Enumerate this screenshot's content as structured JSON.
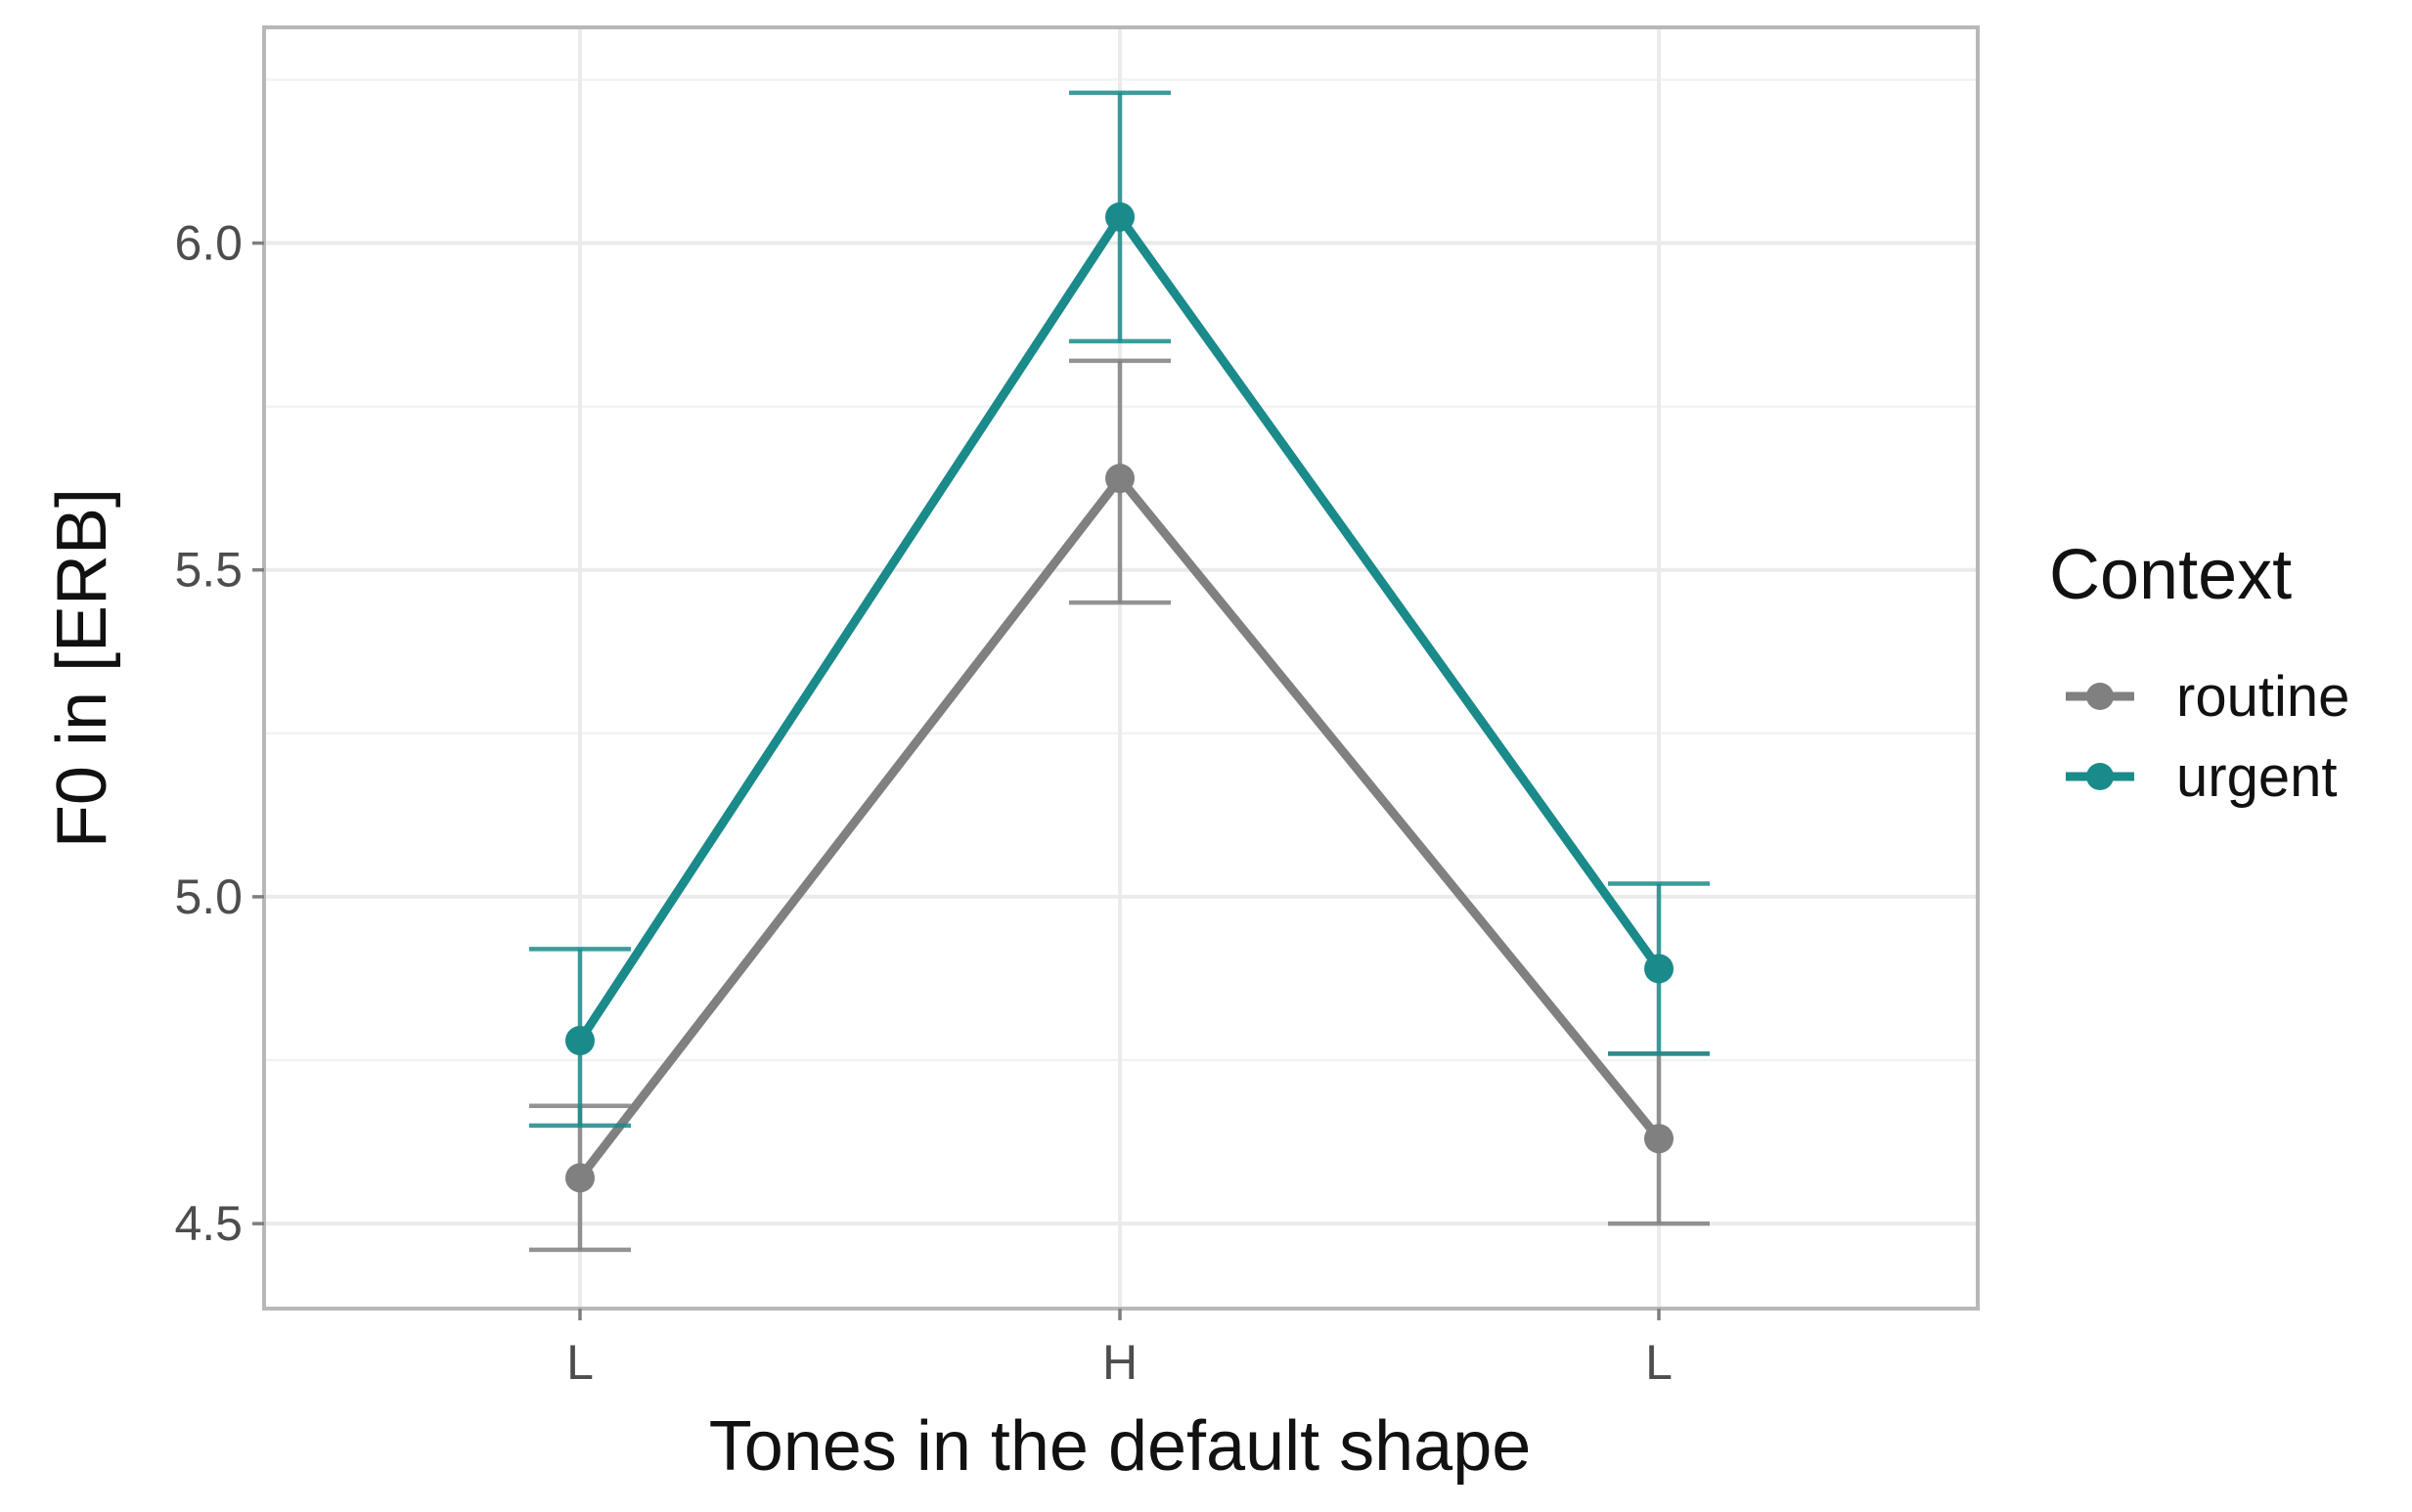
{
  "chart_data": {
    "type": "line",
    "title": "",
    "xlabel": "Tones in the default shape",
    "ylabel": "F0 in [ERB]",
    "categories": [
      "L",
      "H",
      "L"
    ],
    "ylim": [
      4.37,
      6.33
    ],
    "yticks": [
      "4.5",
      "5.0",
      "5.5",
      "6.0"
    ],
    "grid": true,
    "error_bars": true,
    "legend": {
      "title": "Context",
      "position": "right"
    },
    "series": [
      {
        "name": "routine",
        "color": "#808080",
        "values": [
          4.57,
          5.64,
          4.63
        ],
        "lower": [
          4.46,
          5.45,
          4.5
        ],
        "upper": [
          4.68,
          5.82,
          4.76
        ]
      },
      {
        "name": "urgent",
        "color": "#1a8a8a",
        "values": [
          4.78,
          6.04,
          4.89
        ],
        "lower": [
          4.65,
          5.85,
          4.76
        ],
        "upper": [
          4.92,
          6.23,
          5.02
        ]
      }
    ]
  }
}
